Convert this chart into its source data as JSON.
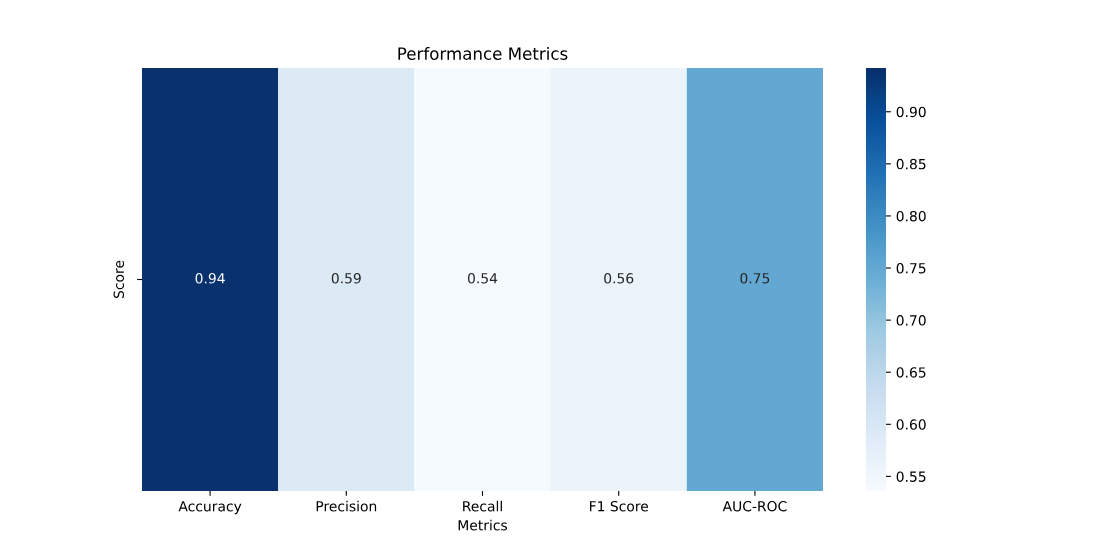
{
  "chart_data": {
    "type": "heatmap",
    "title": "Performance Metrics",
    "xlabel": "Metrics",
    "ylabel": "Score",
    "categories": [
      "Accuracy",
      "Precision",
      "Recall",
      "F1 Score",
      "AUC-ROC"
    ],
    "y_categories": [
      null
    ],
    "cells": [
      [
        0.94,
        0.59,
        0.54,
        0.56,
        0.75
      ]
    ],
    "data_labels": true,
    "clim": [
      0.536,
      0.942
    ],
    "cticks": [
      0.55,
      {
        "value": 0.6,
        "label": "0.60"
      },
      0.65,
      {
        "value": 0.7,
        "label": "0.70"
      },
      0.75,
      {
        "value": 0.8,
        "label": "0.80"
      },
      0.85,
      {
        "value": 0.9,
        "label": "0.90"
      }
    ]
  }
}
